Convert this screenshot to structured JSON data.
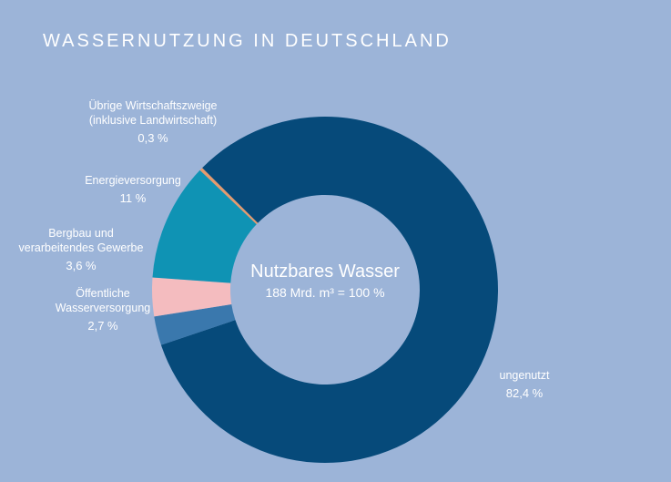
{
  "title": "WASSERNUTZUNG IN DEUTSCHLAND",
  "center": {
    "title": "Nutzbares Wasser",
    "subtitle": "188 Mrd. m³ = 100 %"
  },
  "chart_data": {
    "type": "pie",
    "title": "WASSERNUTZUNG IN DEUTSCHLAND",
    "slices": [
      {
        "label_lines": [
          "ungenutzt"
        ],
        "value": 82.4,
        "value_label": "82,4 %",
        "color": "#064a7a"
      },
      {
        "label_lines": [
          "Öffentliche",
          "Wasserversorgung"
        ],
        "value": 2.7,
        "value_label": "2,7 %",
        "color": "#3a78ad"
      },
      {
        "label_lines": [
          "Bergbau und",
          "verarbeitendes Gewerbe"
        ],
        "value": 3.6,
        "value_label": "3,6 %",
        "color": "#f4bcbf"
      },
      {
        "label_lines": [
          "Energieversorgung"
        ],
        "value": 11,
        "value_label": "11 %",
        "color": "#0f93b4"
      },
      {
        "label_lines": [
          "Übrige Wirtschaftszweige",
          "(inklusive Landwirtschaft)"
        ],
        "value": 0.3,
        "value_label": "0,3 %",
        "color": "#e59a6d"
      }
    ]
  }
}
